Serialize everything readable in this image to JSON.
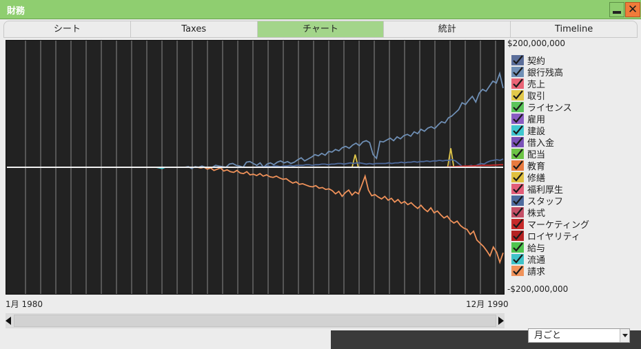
{
  "window": {
    "title": "財務"
  },
  "tabs": [
    {
      "label": "シート",
      "active": false
    },
    {
      "label": "Taxes",
      "active": false
    },
    {
      "label": "チャート",
      "active": true
    },
    {
      "label": "統計",
      "active": false
    },
    {
      "label": "Timeline",
      "active": false
    }
  ],
  "chart_data": {
    "type": "line",
    "y_max_label": "$200,000,000",
    "y_min_label": "-$200,000,000",
    "ylim": [
      -200000000,
      200000000
    ],
    "x_start_label": "1月 1980",
    "x_end_label": "12月 1990",
    "grid": "vertical",
    "series": [
      {
        "name": "契約",
        "color": "#5a6e9a",
        "checked": true
      },
      {
        "name": "銀行残高",
        "color": "#6f8fb5",
        "checked": true,
        "values": [
          0,
          0,
          0,
          0,
          0,
          0,
          0,
          0,
          0,
          0,
          0,
          0,
          0,
          0,
          0,
          0,
          0,
          0,
          0,
          0,
          0,
          0,
          0,
          0,
          0,
          0,
          0,
          0,
          0,
          0,
          0,
          0,
          0,
          0,
          0,
          0,
          0,
          0,
          0,
          0,
          0,
          0,
          0,
          0,
          0,
          0,
          0,
          0,
          0,
          0,
          0,
          0,
          0,
          1000000,
          -2000000,
          1000000,
          0,
          2000000,
          0,
          -1000000,
          0,
          3000000,
          2000000,
          1000000,
          0,
          5000000,
          6000000,
          3000000,
          2000000,
          0,
          8000000,
          9000000,
          6000000,
          3000000,
          7000000,
          0,
          5000000,
          7000000,
          4000000,
          8000000,
          10000000,
          7000000,
          9000000,
          6000000,
          8000000,
          12000000,
          15000000,
          10000000,
          13000000,
          16000000,
          20000000,
          18000000,
          22000000,
          19000000,
          25000000,
          24000000,
          28000000,
          26000000,
          31000000,
          33000000,
          30000000,
          35000000,
          38000000,
          34000000,
          40000000,
          42000000,
          39000000,
          20000000,
          14000000,
          41000000,
          40000000,
          43000000,
          46000000,
          42000000,
          48000000,
          45000000,
          50000000,
          52000000,
          49000000,
          56000000,
          53000000,
          60000000,
          57000000,
          62000000,
          64000000,
          61000000,
          67000000,
          72000000,
          70000000,
          78000000,
          81000000,
          86000000,
          91000000,
          102000000,
          99000000,
          106000000,
          112000000,
          103000000,
          117000000,
          123000000,
          120000000,
          128000000,
          136000000,
          133000000,
          148000000,
          125000000
        ]
      },
      {
        "name": "売上",
        "color": "#e86476",
        "checked": true
      },
      {
        "name": "取引",
        "color": "#e2c84a",
        "checked": true,
        "values": [
          0,
          0,
          0,
          0,
          0,
          0,
          0,
          0,
          0,
          0,
          0,
          0,
          0,
          0,
          0,
          0,
          0,
          0,
          0,
          0,
          0,
          0,
          0,
          0,
          0,
          0,
          0,
          0,
          0,
          0,
          0,
          0,
          0,
          0,
          0,
          0,
          0,
          0,
          0,
          0,
          0,
          0,
          0,
          0,
          0,
          0,
          0,
          0,
          0,
          0,
          0,
          0,
          0,
          0,
          0,
          0,
          0,
          0,
          0,
          0,
          0,
          0,
          0,
          0,
          0,
          0,
          0,
          0,
          0,
          0,
          0,
          0,
          0,
          0,
          0,
          0,
          0,
          0,
          0,
          0,
          0,
          0,
          0,
          0,
          0,
          0,
          0,
          0,
          0,
          0,
          0,
          0,
          0,
          0,
          0,
          0,
          0,
          0,
          0,
          0,
          0,
          0,
          0,
          0,
          0,
          0,
          0,
          0,
          0,
          0,
          0,
          0,
          0,
          20000000,
          0,
          0,
          0,
          0,
          0,
          0,
          0,
          0,
          0,
          0,
          0,
          0,
          0,
          0,
          0,
          0,
          0,
          0,
          0,
          0,
          0,
          0,
          0,
          0,
          0,
          0,
          0,
          0,
          0,
          0,
          30000000,
          0,
          0,
          0,
          0,
          0,
          0,
          0,
          0,
          0,
          0,
          0,
          0,
          0,
          0,
          0,
          0,
          0
        ]
      },
      {
        "name": "ライセンス",
        "color": "#5bc45b",
        "checked": true
      },
      {
        "name": "雇用",
        "color": "#8a5cc2",
        "checked": true
      },
      {
        "name": "建設",
        "color": "#3fc6cf",
        "checked": true,
        "values": [
          0,
          0,
          0,
          0,
          0,
          0,
          0,
          0,
          0,
          0,
          0,
          0,
          0,
          0,
          0,
          0,
          0,
          0,
          0,
          0,
          0,
          0,
          0,
          0,
          0,
          0,
          0,
          0,
          0,
          0,
          0,
          0,
          0,
          0,
          0,
          0,
          0,
          0,
          0,
          0,
          0,
          0,
          0,
          0,
          0,
          0,
          0,
          0,
          0,
          0,
          -1000000,
          -2000000,
          0,
          0,
          0,
          0,
          0,
          0,
          0,
          0,
          0,
          0,
          0,
          0,
          0,
          0,
          0,
          0,
          0,
          0,
          0,
          0,
          0,
          0,
          0,
          0,
          0,
          0,
          0,
          0,
          0,
          0,
          0,
          0,
          0,
          0,
          0,
          0,
          0,
          0,
          0,
          0,
          0,
          0,
          0,
          0,
          0,
          0,
          0,
          0,
          0,
          0,
          0,
          0,
          0,
          0,
          0,
          0,
          0,
          0,
          0,
          0,
          0,
          0,
          0,
          0,
          0,
          0,
          0,
          0,
          0,
          0,
          0,
          0,
          0,
          0,
          0,
          0,
          0,
          0,
          0,
          0,
          0,
          0,
          0,
          0,
          0,
          0,
          0,
          0,
          0,
          0,
          0,
          0,
          0,
          0,
          0,
          0,
          0,
          0,
          0,
          0,
          0,
          0,
          0,
          0,
          0,
          0,
          0,
          0,
          0,
          0,
          0,
          0
        ]
      },
      {
        "name": "借入金",
        "color": "#7a52b8",
        "checked": true
      },
      {
        "name": "配当",
        "color": "#6cc445",
        "checked": true
      },
      {
        "name": "教育",
        "color": "#e87a3f",
        "checked": true
      },
      {
        "name": "修繕",
        "color": "#e0c040",
        "checked": true
      },
      {
        "name": "福利厚生",
        "color": "#e25d78",
        "checked": true
      },
      {
        "name": "スタッフ",
        "color": "#4e6b9e",
        "checked": true,
        "values": [
          0,
          0,
          0,
          0,
          0,
          0,
          0,
          0,
          0,
          0,
          0,
          0,
          0,
          0,
          0,
          0,
          0,
          0,
          0,
          0,
          0,
          0,
          0,
          0,
          0,
          0,
          0,
          0,
          0,
          0,
          0,
          0,
          0,
          0,
          0,
          0,
          0,
          0,
          0,
          0,
          0,
          0,
          0,
          0,
          0,
          0,
          0,
          0,
          0,
          0,
          0,
          0,
          0,
          0,
          0,
          0,
          0,
          0,
          0,
          0,
          0,
          0,
          0,
          0,
          0,
          0,
          0,
          0,
          0,
          0,
          0,
          0,
          0,
          0,
          0,
          0,
          0,
          0,
          0,
          1000000,
          1000000,
          1000000,
          2000000,
          1000000,
          2000000,
          2000000,
          1000000,
          2000000,
          2000000,
          3000000,
          2000000,
          3000000,
          3000000,
          3000000,
          4000000,
          4000000,
          3000000,
          4000000,
          4000000,
          5000000,
          5000000,
          4000000,
          5000000,
          5000000,
          6000000,
          6000000,
          5000000,
          6000000,
          7000000,
          6000000,
          7000000,
          7000000,
          6000000,
          5000000,
          6000000,
          5000000,
          6000000,
          6000000,
          6000000,
          6000000,
          7000000,
          6000000,
          7000000,
          7000000,
          8000000,
          7000000,
          8000000,
          8000000,
          9000000,
          8000000,
          9000000,
          9000000,
          10000000,
          9000000,
          10000000,
          10000000,
          11000000,
          10000000,
          11000000,
          11000000,
          12000000,
          10000000,
          6000000,
          2000000,
          0,
          2000000,
          3000000,
          1000000,
          4000000,
          6000000,
          5000000,
          8000000,
          10000000,
          11000000,
          12000000,
          11000000,
          13000000
        ]
      },
      {
        "name": "株式",
        "color": "#c44f66",
        "checked": true
      },
      {
        "name": "マーケティング",
        "color": "#c52a2a",
        "checked": true,
        "values": [
          0,
          0,
          0,
          0,
          0,
          0,
          0,
          0,
          0,
          0,
          0,
          0,
          0,
          0,
          0,
          0,
          0,
          0,
          0,
          0,
          0,
          0,
          0,
          0,
          0,
          0,
          0,
          0,
          0,
          0,
          0,
          0,
          0,
          0,
          0,
          0,
          0,
          0,
          0,
          0,
          0,
          0,
          0,
          0,
          0,
          0,
          0,
          0,
          0,
          0,
          0,
          0,
          0,
          0,
          0,
          0,
          0,
          0,
          0,
          0,
          0,
          0,
          0,
          0,
          0,
          0,
          0,
          0,
          0,
          0,
          0,
          0,
          0,
          0,
          0,
          0,
          0,
          0,
          0,
          0,
          0,
          0,
          0,
          0,
          0,
          0,
          0,
          0,
          0,
          0,
          0,
          0,
          0,
          0,
          0,
          0,
          0,
          0,
          0,
          0,
          0,
          0,
          0,
          0,
          0,
          0,
          0,
          0,
          0,
          0,
          0,
          0,
          0,
          0,
          0,
          0,
          0,
          0,
          0,
          0,
          0,
          0,
          0,
          0,
          0,
          0,
          0,
          500000,
          1000000,
          1000000,
          1500000,
          1500000,
          2000000,
          2000000,
          2000000,
          2500000,
          2500000,
          3000000,
          3000000,
          3000000,
          3500000,
          3500000,
          4000000,
          4000000
        ]
      },
      {
        "name": "ロイヤリティ",
        "color": "#b52222",
        "checked": true
      },
      {
        "name": "給与",
        "color": "#4fc44f",
        "checked": true
      },
      {
        "name": "流通",
        "color": "#3fc2c8",
        "checked": true
      },
      {
        "name": "請求",
        "color": "#f0925a",
        "checked": true,
        "values": [
          0,
          0,
          0,
          0,
          0,
          0,
          0,
          0,
          0,
          0,
          0,
          0,
          0,
          0,
          0,
          0,
          0,
          0,
          0,
          0,
          0,
          0,
          0,
          0,
          0,
          0,
          0,
          0,
          0,
          0,
          0,
          0,
          0,
          0,
          0,
          0,
          0,
          0,
          0,
          0,
          0,
          0,
          0,
          0,
          0,
          0,
          0,
          0,
          0,
          0,
          0,
          0,
          0,
          0,
          0,
          0,
          0,
          0,
          0,
          -1000000,
          0,
          -3000000,
          -1000000,
          -5000000,
          -3000000,
          -1000000,
          -6000000,
          -4000000,
          -7000000,
          -8000000,
          -5000000,
          -9000000,
          -10000000,
          -7000000,
          -12000000,
          -11000000,
          -13000000,
          -10000000,
          -14000000,
          -12000000,
          -15000000,
          -16000000,
          -14000000,
          -17000000,
          -19000000,
          -18000000,
          -22000000,
          -25000000,
          -23000000,
          -27000000,
          -26000000,
          -28000000,
          -30000000,
          -31000000,
          -29000000,
          -33000000,
          -32000000,
          -35000000,
          -34000000,
          -37000000,
          -42000000,
          -38000000,
          -46000000,
          -40000000,
          -36000000,
          -44000000,
          -39000000,
          -42000000,
          -28000000,
          -14000000,
          -36000000,
          -45000000,
          -43000000,
          -47000000,
          -50000000,
          -46000000,
          -52000000,
          -49000000,
          -55000000,
          -51000000,
          -57000000,
          -54000000,
          -59000000,
          -56000000,
          -61000000,
          -65000000,
          -60000000,
          -66000000,
          -70000000,
          -64000000,
          -72000000,
          -69000000,
          -75000000,
          -80000000,
          -77000000,
          -84000000,
          -88000000,
          -85000000,
          -92000000,
          -96000000,
          -98000000,
          -106000000,
          -101000000,
          -115000000,
          -120000000,
          -125000000,
          -132000000,
          -140000000,
          -126000000,
          -134000000,
          -150000000,
          -135000000
        ]
      },
      {
        "name": "total",
        "legend": false,
        "color": "#f2f2f2",
        "flat": true
      }
    ]
  },
  "scrollbar": {},
  "interval_select": {
    "value": "月ごと"
  }
}
